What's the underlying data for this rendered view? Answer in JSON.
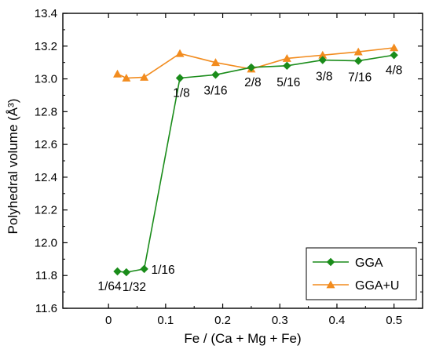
{
  "chart_data": {
    "type": "line",
    "title": "",
    "xlabel": "Fe / (Ca + Mg + Fe)",
    "ylabel": "Polyhedral volume (Å³)",
    "xlim": [
      -0.08,
      0.55
    ],
    "ylim": [
      11.6,
      13.4
    ],
    "xticks": [
      0,
      0.1,
      0.2,
      0.3,
      0.4,
      0.5
    ],
    "xtick_labels": [
      "0",
      "0.1",
      "0.2",
      "0.3",
      "0.4",
      "0.5"
    ],
    "yticks": [
      11.6,
      11.8,
      12.0,
      12.2,
      12.4,
      12.6,
      12.8,
      13.0,
      13.2,
      13.4
    ],
    "ytick_labels": [
      "11.6",
      "11.8",
      "12.0",
      "12.2",
      "12.4",
      "12.6",
      "12.8",
      "13.0",
      "13.2",
      "13.4"
    ],
    "grid": false,
    "legend_position": "bottom-right",
    "series": [
      {
        "name": "GGA",
        "color": "#1a8c1a",
        "marker": "diamond",
        "x": [
          0.015625,
          0.03125,
          0.0625,
          0.125,
          0.1875,
          0.25,
          0.3125,
          0.375,
          0.4375,
          0.5
        ],
        "y": [
          11.825,
          11.82,
          11.84,
          13.005,
          13.025,
          13.07,
          13.08,
          13.115,
          13.11,
          13.145
        ]
      },
      {
        "name": "GGA+U",
        "color": "#f28c1f",
        "marker": "triangle",
        "x": [
          0.015625,
          0.03125,
          0.0625,
          0.125,
          0.1875,
          0.25,
          0.3125,
          0.375,
          0.4375,
          0.5
        ],
        "y": [
          13.03,
          13.005,
          13.01,
          13.155,
          13.1,
          13.06,
          13.125,
          13.145,
          13.165,
          13.19
        ]
      }
    ],
    "annotations": [
      {
        "text": "1/64",
        "x": 0.015625,
        "y": 11.825
      },
      {
        "text": "1/32",
        "x": 0.03125,
        "y": 11.82
      },
      {
        "text": "1/16",
        "x": 0.0625,
        "y": 11.84
      },
      {
        "text": "1/8",
        "x": 0.125,
        "y": 13.005
      },
      {
        "text": "3/16",
        "x": 0.1875,
        "y": 13.025
      },
      {
        "text": "2/8",
        "x": 0.25,
        "y": 13.07
      },
      {
        "text": "5/16",
        "x": 0.3125,
        "y": 13.08
      },
      {
        "text": "3/8",
        "x": 0.375,
        "y": 13.115
      },
      {
        "text": "7/16",
        "x": 0.4375,
        "y": 13.11
      },
      {
        "text": "4/8",
        "x": 0.5,
        "y": 13.145
      }
    ]
  }
}
